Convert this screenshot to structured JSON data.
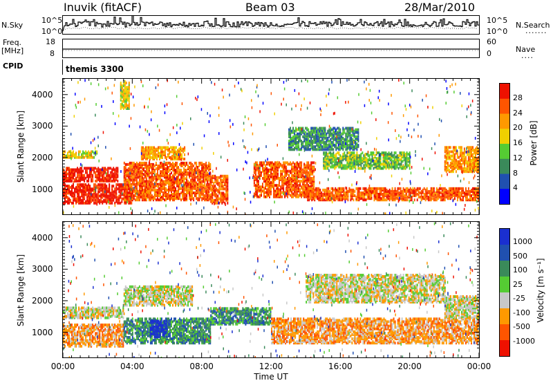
{
  "header": {
    "station": "Inuvik (fitACF)",
    "beam": "Beam 03",
    "date": "28/Mar/2010"
  },
  "top_panels": {
    "nsky_label": "N.Sky",
    "nsky_ticks": [
      "10^5",
      "10^0"
    ],
    "nsearch_label": "N.Search",
    "nsearch_ticks": [
      "10^5",
      "10^0"
    ],
    "freq_label": "Freq.",
    "freq_unit": "[MHz]",
    "freq_ticks": [
      "18",
      "8"
    ],
    "nave_label": "Nave",
    "nave_ticks": [
      "60",
      "0"
    ],
    "cpid_label": "CPID",
    "cpid_value": "themis 3300"
  },
  "chart_data": [
    {
      "type": "heatmap",
      "name": "power",
      "ylabel": "Slant Range [km]",
      "yticks": [
        1000,
        2000,
        3000,
        4000
      ],
      "ylim": [
        200,
        4500
      ],
      "x_ticks": [
        "00:00",
        "04:00",
        "08:00",
        "12:00",
        "16:00",
        "20:00",
        "00:00"
      ],
      "colorbar_label": "Power [dB]",
      "colorbar_ticks": [
        "28",
        "24",
        "20",
        "16",
        "12",
        "8",
        "4"
      ],
      "colors": [
        "#0000ff",
        "#2050b0",
        "#3a8a5a",
        "#55cc33",
        "#f0d000",
        "#ff9900",
        "#ff5500",
        "#ee1100"
      ],
      "bands": [
        {
          "t0": 0.0,
          "t1": 3.2,
          "r0": 1300,
          "r1": 1750,
          "level": 7
        },
        {
          "t0": 0.0,
          "t1": 4.0,
          "r0": 600,
          "r1": 1200,
          "level": 7
        },
        {
          "t0": 0.0,
          "t1": 2.0,
          "r0": 2050,
          "r1": 2250,
          "level": 4
        },
        {
          "t0": 3.5,
          "t1": 8.5,
          "r0": 700,
          "r1": 1900,
          "level": 6
        },
        {
          "t0": 4.5,
          "t1": 7.0,
          "r0": 2000,
          "r1": 2400,
          "level": 5
        },
        {
          "t0": 8.5,
          "t1": 9.5,
          "r0": 600,
          "r1": 1500,
          "level": 6
        },
        {
          "t0": 11.0,
          "t1": 14.5,
          "r0": 800,
          "r1": 1900,
          "level": 6
        },
        {
          "t0": 13.0,
          "t1": 17.0,
          "r0": 2300,
          "r1": 3000,
          "level": 2
        },
        {
          "t0": 15.0,
          "t1": 20.0,
          "r0": 1700,
          "r1": 2200,
          "level": 3
        },
        {
          "t0": 14.0,
          "t1": 24.0,
          "r0": 700,
          "r1": 1100,
          "level": 6
        },
        {
          "t0": 22.0,
          "t1": 24.0,
          "r0": 1600,
          "r1": 2400,
          "level": 5
        },
        {
          "t0": 3.3,
          "t1": 3.8,
          "r0": 3600,
          "r1": 4500,
          "level": 4
        }
      ]
    },
    {
      "type": "heatmap",
      "name": "velocity",
      "ylabel": "Slant Range [km]",
      "yticks": [
        1000,
        2000,
        3000,
        4000
      ],
      "ylim": [
        200,
        4500
      ],
      "x_ticks": [
        "00:00",
        "04:00",
        "08:00",
        "12:00",
        "16:00",
        "20:00",
        "00:00"
      ],
      "xlabel": "Time UT",
      "colorbar_label": "Velocity [m s⁻¹]",
      "colorbar_ticks": [
        "1000",
        "500",
        "100",
        "25",
        "-25",
        "-100",
        "-500",
        "-1000"
      ],
      "colors": [
        "#ee1100",
        "#ff5500",
        "#ff9900",
        "#c8c8c8",
        "#55cc33",
        "#3a8a5a",
        "#2050b0",
        "#1a2fd0"
      ],
      "bands": [
        {
          "t0": 0.0,
          "t1": 3.5,
          "r0": 1500,
          "r1": 1850,
          "level": 3
        },
        {
          "t0": 0.0,
          "t1": 3.5,
          "r0": 600,
          "r1": 1300,
          "level": 2
        },
        {
          "t0": 3.5,
          "t1": 8.5,
          "r0": 700,
          "r1": 1500,
          "level": 5
        },
        {
          "t0": 3.5,
          "t1": 7.5,
          "r0": 1900,
          "r1": 2500,
          "level": 3
        },
        {
          "t0": 8.5,
          "t1": 12.0,
          "r0": 1300,
          "r1": 1800,
          "level": 5
        },
        {
          "t0": 12.0,
          "t1": 24.0,
          "r0": 700,
          "r1": 1500,
          "level": 2
        },
        {
          "t0": 14.0,
          "t1": 22.0,
          "r0": 2000,
          "r1": 2900,
          "level": 3
        },
        {
          "t0": 22.0,
          "t1": 24.0,
          "r0": 1500,
          "r1": 2200,
          "level": 3
        },
        {
          "t0": 5.0,
          "t1": 6.0,
          "r0": 900,
          "r1": 1400,
          "level": 7
        }
      ]
    }
  ]
}
